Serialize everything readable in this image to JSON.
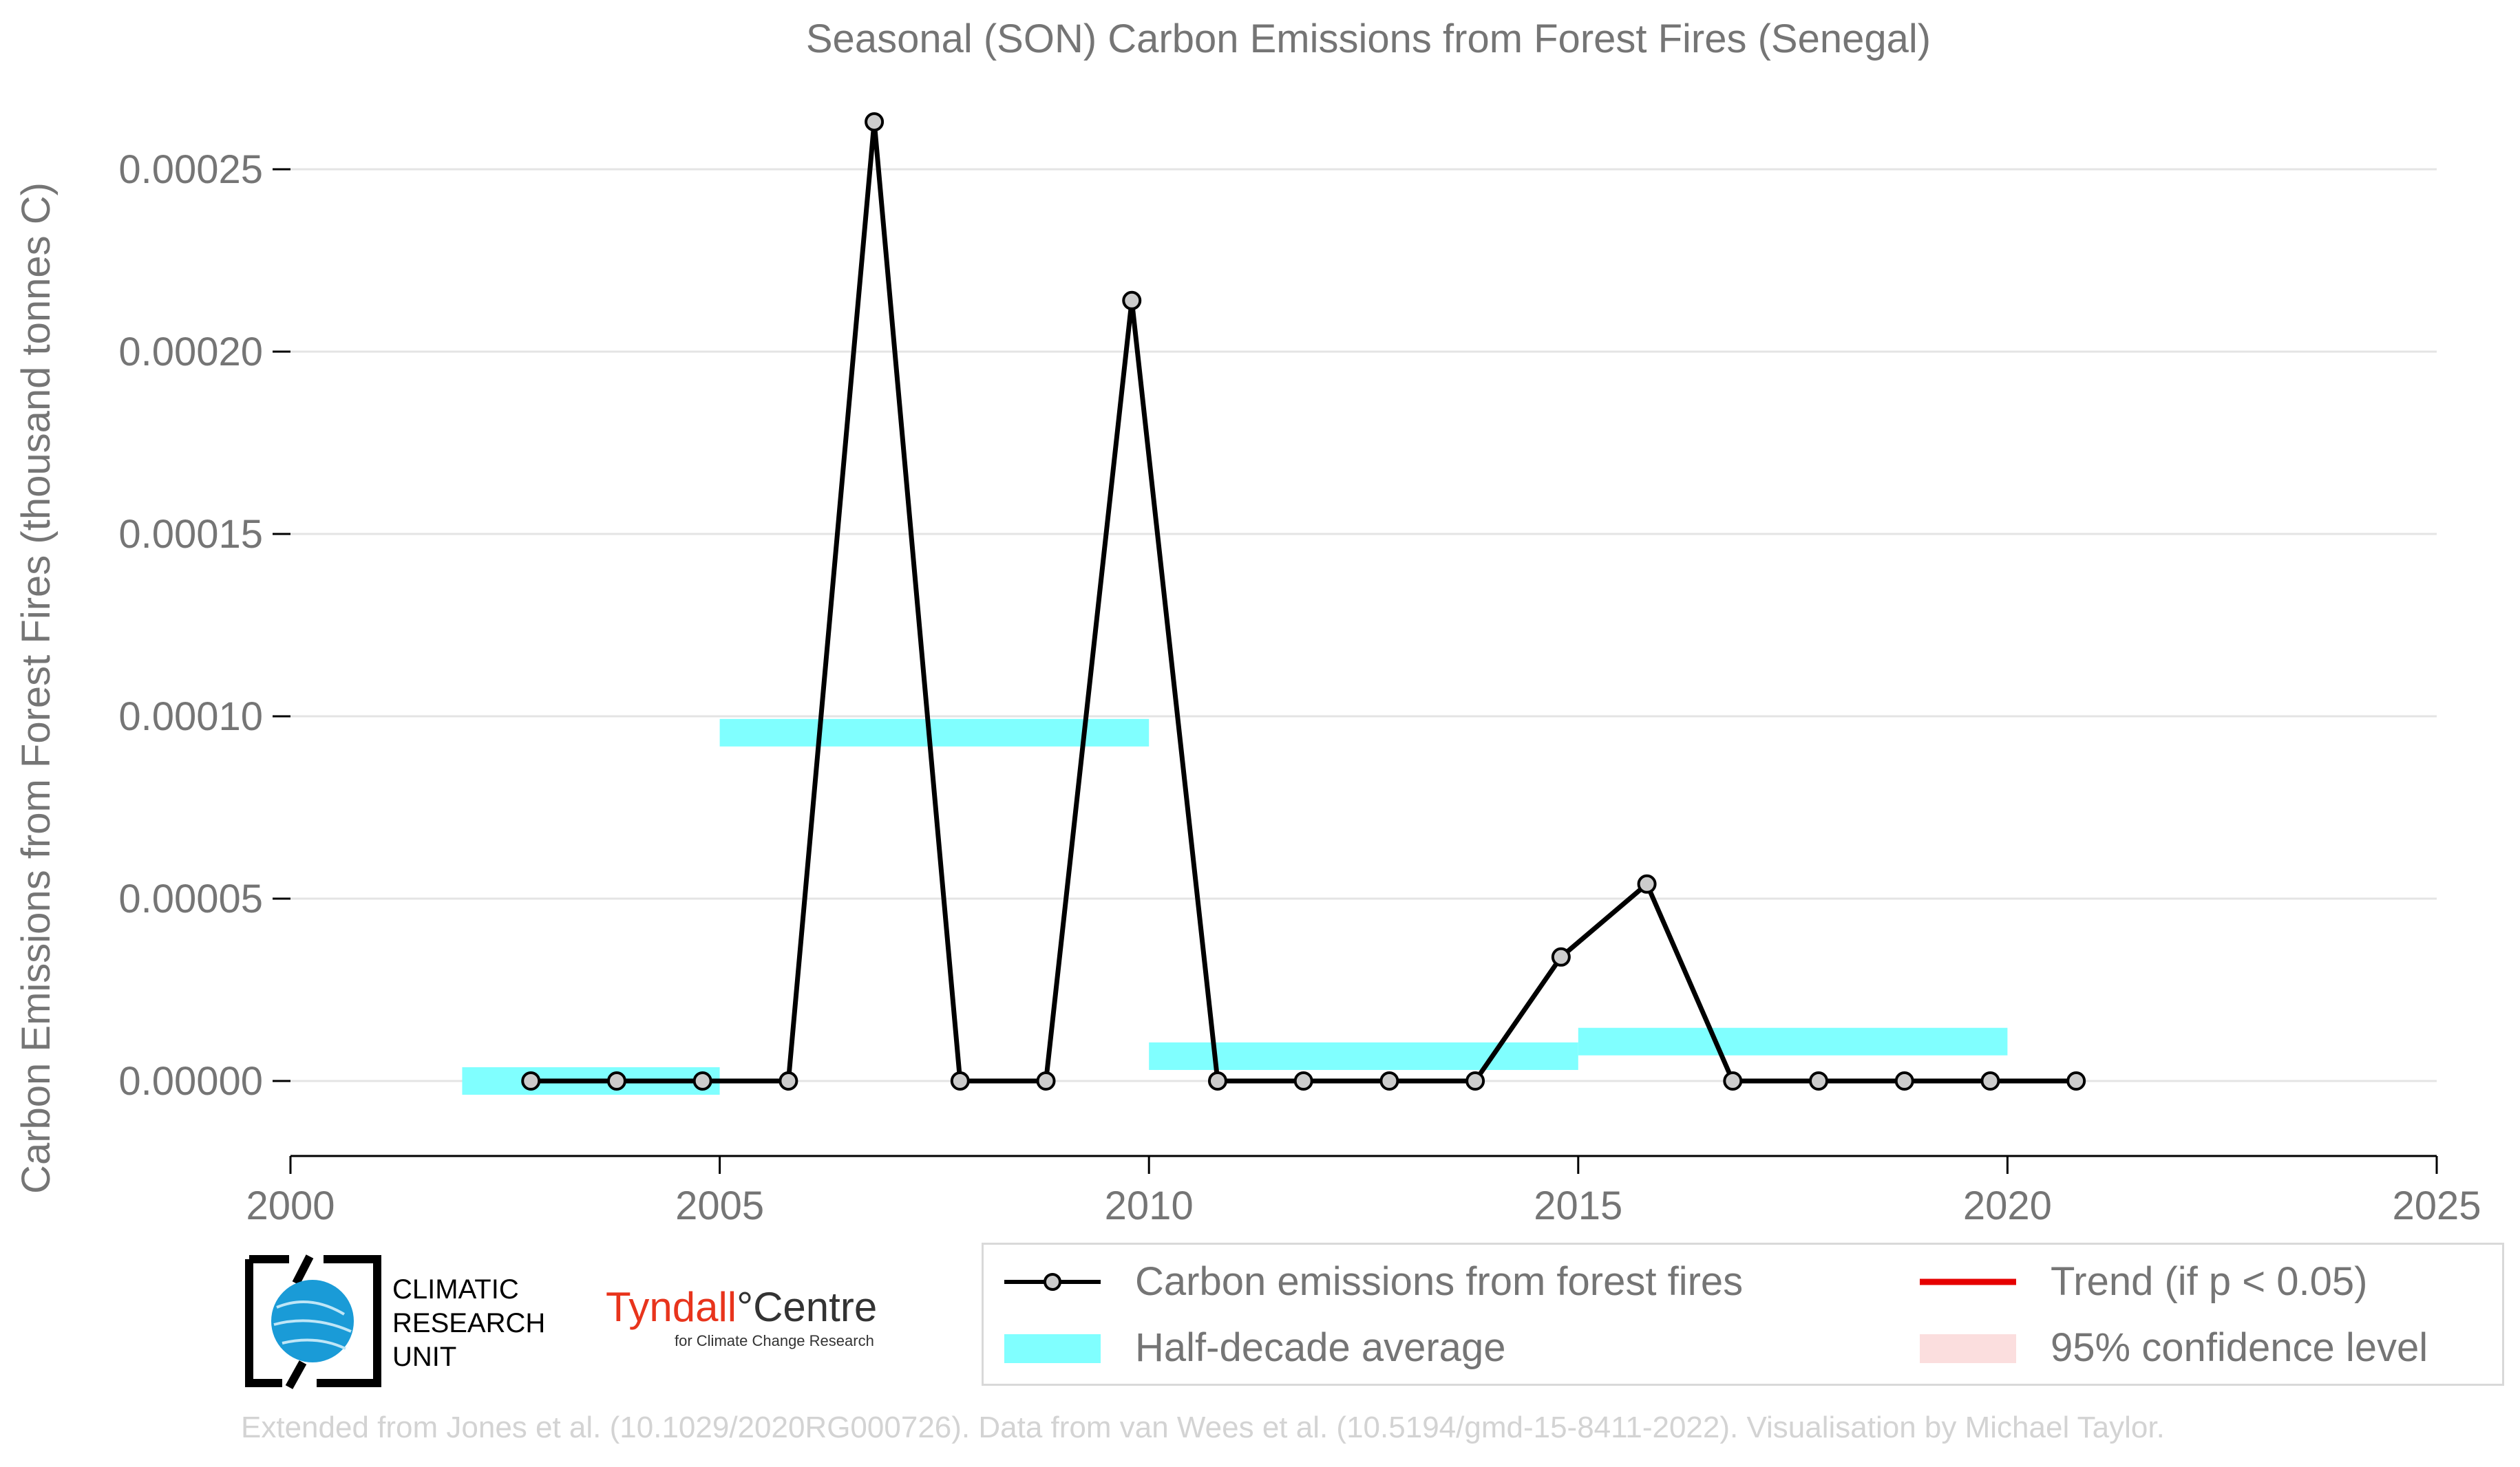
{
  "chart_data": {
    "type": "line",
    "title": "Seasonal (SON) Carbon Emissions from Forest Fires (Senegal)",
    "ylabel": "Carbon Emissions from Forest Fires (thousand tonnes C)",
    "xlabel": "",
    "xlim": [
      2000,
      2025
    ],
    "ylim": [
      -2e-05,
      0.00028
    ],
    "x_ticks": [
      "2000",
      "2005",
      "2010",
      "2015",
      "2020",
      "2025"
    ],
    "y_ticks": [
      "0.00000",
      "0.00005",
      "0.00010",
      "0.00015",
      "0.00020",
      "0.00025"
    ],
    "grid": "horizontal",
    "series": [
      {
        "name": "Carbon emissions from forest fires",
        "color": "#000000",
        "x": [
          2003,
          2004,
          2005,
          2006,
          2007,
          2008,
          2009,
          2010,
          2011,
          2012,
          2013,
          2014,
          2015,
          2016,
          2017,
          2018,
          2019,
          2020,
          2021
        ],
        "y": [
          0.0,
          0.0,
          0.0,
          0.0,
          0.000263,
          0.0,
          0.0,
          0.000214,
          0.0,
          0.0,
          0.0,
          0.0,
          3.4e-05,
          5.4e-05,
          0.0,
          0.0,
          0.0,
          0.0,
          0.0
        ]
      }
    ],
    "half_decade_average": {
      "name": "Half-decade average",
      "color": "#80ffff",
      "segments": [
        {
          "x_start": 2002,
          "x_end": 2005,
          "y": 0.0
        },
        {
          "x_start": 2005,
          "x_end": 2010,
          "y": 9.55e-05
        },
        {
          "x_start": 2010,
          "x_end": 2015,
          "y": 6.8e-06
        },
        {
          "x_start": 2015,
          "x_end": 2020,
          "y": 1.08e-05
        }
      ]
    },
    "legend": {
      "position": "bottom-right",
      "entries": [
        {
          "label": "Carbon emissions from forest fires",
          "color": "#000000",
          "kind": "line-marker"
        },
        {
          "label": "Trend (if p < 0.05)",
          "color": "#e60000",
          "kind": "line"
        },
        {
          "label": "Half-decade average",
          "color": "#80ffff",
          "kind": "band"
        },
        {
          "label": "95% confidence level",
          "color": "#fbdede",
          "kind": "band"
        }
      ]
    }
  },
  "logos": {
    "cru_text": [
      "CLIMATIC",
      "RESEARCH",
      "UNIT"
    ],
    "tyndall_main": "Tyndall",
    "tyndall_centre": "°Centre",
    "tyndall_sub": "for Climate Change Research"
  },
  "credit": "Extended from Jones et al. (10.1029/2020RG000726). Data from van Wees et al. (10.5194/gmd-15-8411-2022). Visualisation by Michael Taylor."
}
